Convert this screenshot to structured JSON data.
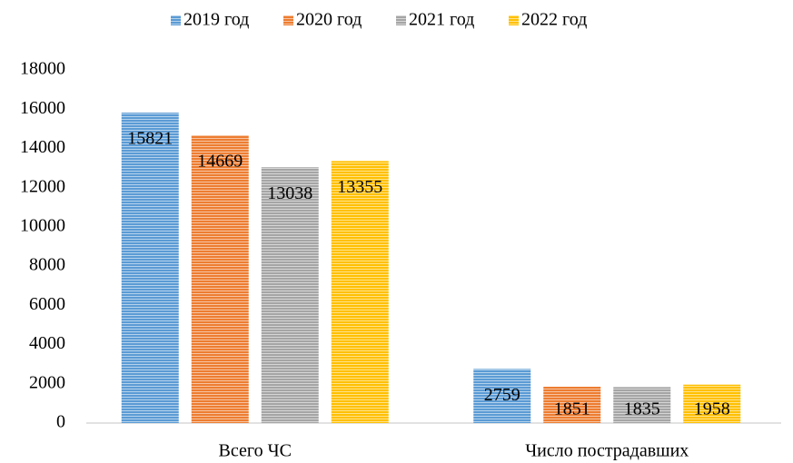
{
  "chart_data": {
    "type": "bar",
    "categories": [
      "Всего ЧС",
      "Число пострадавших"
    ],
    "series": [
      {
        "name": "2019 год",
        "color": "#5b9bd5",
        "values": [
          15821,
          2759
        ]
      },
      {
        "name": "2020 год",
        "color": "#ed7d31",
        "values": [
          14669,
          1851
        ]
      },
      {
        "name": "2021 год",
        "color": "#a5a5a5",
        "values": [
          13038,
          1835
        ]
      },
      {
        "name": "2022 год",
        "color": "#ffc000",
        "values": [
          13355,
          1958
        ]
      }
    ],
    "ylim": [
      0,
      18000
    ],
    "yticks": [
      0,
      2000,
      4000,
      6000,
      8000,
      10000,
      12000,
      14000,
      16000,
      18000
    ],
    "grid": false,
    "legend": "top"
  }
}
